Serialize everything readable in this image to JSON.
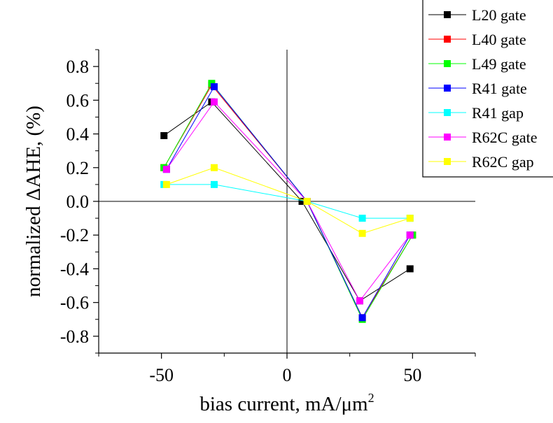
{
  "chart_data": {
    "type": "line",
    "xlabel": "bias current, mA/μm",
    "xlabel_superscript": "2",
    "ylabel": "normalized ΔAHE, (%)",
    "xlim": [
      -75,
      75
    ],
    "ylim": [
      -0.9,
      0.9
    ],
    "x_ticks": [
      -50,
      0,
      50
    ],
    "x_tick_labels": [
      "-50",
      "0",
      "50"
    ],
    "y_ticks": [
      0.8,
      0.6,
      0.4,
      0.2,
      0.0,
      -0.2,
      -0.4,
      -0.6,
      -0.8
    ],
    "y_tick_labels": [
      "0.8",
      "0.6",
      "0.4",
      "0.2",
      "0.0",
      "-0.2",
      "-0.4",
      "-0.6",
      "-0.8"
    ],
    "grid": false,
    "zero_lines": true,
    "legend_position": "top-right",
    "series": [
      {
        "name": "L20 gate",
        "color": "#000000",
        "x": [
          -49,
          -30,
          6,
          29,
          49
        ],
        "y": [
          0.39,
          0.59,
          0.0,
          -0.59,
          -0.4
        ]
      },
      {
        "name": "L40 gate",
        "color": "#ff0000",
        "x": [
          -49,
          -30,
          8,
          30,
          50
        ],
        "y": [
          0.2,
          0.69,
          0.0,
          -0.69,
          -0.2
        ]
      },
      {
        "name": "L49 gate",
        "color": "#00ff00",
        "x": [
          -49,
          -30,
          8,
          30,
          50
        ],
        "y": [
          0.2,
          0.7,
          0.0,
          -0.7,
          -0.2
        ]
      },
      {
        "name": "R41 gate",
        "color": "#0000ff",
        "x": [
          -48,
          -29,
          8,
          30,
          49
        ],
        "y": [
          0.19,
          0.68,
          0.0,
          -0.69,
          -0.2
        ]
      },
      {
        "name": "R41 gap",
        "color": "#00ffff",
        "x": [
          -49,
          -29,
          8,
          30,
          49
        ],
        "y": [
          0.1,
          0.1,
          0.0,
          -0.1,
          -0.1
        ]
      },
      {
        "name": "R62C gate",
        "color": "#ff00ff",
        "x": [
          -48,
          -29,
          8,
          29,
          49
        ],
        "y": [
          0.19,
          0.59,
          0.0,
          -0.59,
          -0.2
        ]
      },
      {
        "name": "R62C gap",
        "color": "#ffff00",
        "x": [
          -48,
          -29,
          8,
          30,
          49
        ],
        "y": [
          0.1,
          0.2,
          0.0,
          -0.19,
          -0.1
        ]
      }
    ]
  }
}
